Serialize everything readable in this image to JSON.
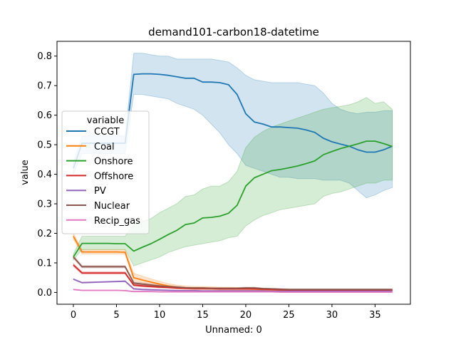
{
  "chart_data": {
    "type": "line",
    "title": "demand101-carbon18-datetime",
    "xlabel": "Unnamed: 0",
    "ylabel": "value",
    "xlim": [
      -1.9,
      39.1
    ],
    "ylim": [
      -0.04,
      0.85
    ],
    "xticks": [
      0,
      5,
      10,
      15,
      20,
      25,
      30,
      35
    ],
    "yticks": [
      0.0,
      0.1,
      0.2,
      0.3,
      0.4,
      0.5,
      0.6,
      0.7,
      0.8
    ],
    "grid": false,
    "legend": {
      "title": "variable",
      "placement": "center-left"
    },
    "x": [
      0,
      1,
      2,
      3,
      4,
      5,
      6,
      7,
      8,
      9,
      10,
      11,
      12,
      13,
      14,
      15,
      16,
      17,
      18,
      19,
      20,
      21,
      22,
      23,
      24,
      25,
      26,
      27,
      28,
      29,
      30,
      31,
      32,
      33,
      34,
      35,
      36,
      37
    ],
    "series": [
      {
        "name": "CCGT",
        "color": "#1f77b4",
        "values": [
          0.42,
          0.505,
          0.505,
          0.505,
          0.505,
          0.505,
          0.505,
          0.738,
          0.74,
          0.74,
          0.738,
          0.735,
          0.73,
          0.725,
          0.725,
          0.712,
          0.712,
          0.71,
          0.703,
          0.67,
          0.605,
          0.577,
          0.57,
          0.56,
          0.56,
          0.558,
          0.556,
          0.55,
          0.542,
          0.522,
          0.51,
          0.502,
          0.495,
          0.483,
          0.475,
          0.475,
          0.483,
          0.495
        ],
        "lower": [
          0.4,
          0.47,
          0.47,
          0.47,
          0.47,
          0.47,
          0.47,
          0.67,
          0.67,
          0.665,
          0.66,
          0.655,
          0.64,
          0.63,
          0.62,
          0.6,
          0.57,
          0.54,
          0.5,
          0.47,
          0.43,
          0.42,
          0.41,
          0.4,
          0.39,
          0.39,
          0.385,
          0.385,
          0.385,
          0.38,
          0.38,
          0.38,
          0.37,
          0.345,
          0.32,
          0.33,
          0.345,
          0.355
        ],
        "upper": [
          0.44,
          0.53,
          0.53,
          0.53,
          0.53,
          0.53,
          0.53,
          0.81,
          0.81,
          0.805,
          0.8,
          0.8,
          0.79,
          0.79,
          0.79,
          0.79,
          0.79,
          0.785,
          0.78,
          0.76,
          0.735,
          0.72,
          0.715,
          0.71,
          0.71,
          0.71,
          0.71,
          0.705,
          0.7,
          0.675,
          0.64,
          0.62,
          0.61,
          0.605,
          0.61,
          0.61,
          0.615,
          0.615
        ]
      },
      {
        "name": "Coal",
        "color": "#ff7f0e",
        "values": [
          0.19,
          0.137,
          0.137,
          0.137,
          0.137,
          0.137,
          0.136,
          0.05,
          0.042,
          0.035,
          0.028,
          0.022,
          0.018,
          0.016,
          0.015,
          0.015,
          0.014,
          0.013,
          0.013,
          0.012,
          0.012,
          0.011,
          0.01,
          0.009,
          0.008,
          0.008,
          0.007,
          0.007,
          0.006,
          0.006,
          0.006,
          0.006,
          0.006,
          0.006,
          0.005,
          0.005,
          0.005,
          0.005
        ],
        "lower": [
          0.18,
          0.13,
          0.13,
          0.13,
          0.13,
          0.13,
          0.13,
          0.04,
          0.033,
          0.026,
          0.02,
          0.015,
          0.012,
          0.011,
          0.01,
          0.01,
          0.009,
          0.008,
          0.008,
          0.007,
          0.007,
          0.007,
          0.006,
          0.005,
          0.005,
          0.005,
          0.004,
          0.004,
          0.004,
          0.004,
          0.004,
          0.004,
          0.004,
          0.004,
          0.003,
          0.003,
          0.003,
          0.003
        ],
        "upper": [
          0.2,
          0.145,
          0.145,
          0.145,
          0.145,
          0.145,
          0.145,
          0.065,
          0.055,
          0.046,
          0.038,
          0.03,
          0.025,
          0.022,
          0.02,
          0.02,
          0.019,
          0.018,
          0.018,
          0.017,
          0.017,
          0.016,
          0.014,
          0.013,
          0.012,
          0.011,
          0.01,
          0.01,
          0.009,
          0.009,
          0.009,
          0.009,
          0.009,
          0.009,
          0.008,
          0.008,
          0.008,
          0.008
        ]
      },
      {
        "name": "Onshore",
        "color": "#2ca02c",
        "values": [
          0.12,
          0.166,
          0.166,
          0.166,
          0.166,
          0.165,
          0.165,
          0.14,
          0.153,
          0.165,
          0.18,
          0.196,
          0.21,
          0.23,
          0.235,
          0.252,
          0.254,
          0.258,
          0.268,
          0.295,
          0.36,
          0.388,
          0.4,
          0.412,
          0.416,
          0.422,
          0.428,
          0.436,
          0.445,
          0.466,
          0.477,
          0.487,
          0.495,
          0.503,
          0.512,
          0.512,
          0.504,
          0.494
        ],
        "lower": [
          0.11,
          0.145,
          0.145,
          0.145,
          0.145,
          0.145,
          0.145,
          0.09,
          0.1,
          0.11,
          0.12,
          0.135,
          0.145,
          0.155,
          0.16,
          0.165,
          0.17,
          0.175,
          0.185,
          0.19,
          0.225,
          0.245,
          0.26,
          0.27,
          0.28,
          0.285,
          0.29,
          0.295,
          0.3,
          0.325,
          0.335,
          0.34,
          0.35,
          0.36,
          0.37,
          0.37,
          0.38,
          0.38
        ],
        "upper": [
          0.13,
          0.19,
          0.19,
          0.19,
          0.19,
          0.19,
          0.19,
          0.23,
          0.24,
          0.25,
          0.27,
          0.285,
          0.3,
          0.325,
          0.33,
          0.35,
          0.36,
          0.36,
          0.375,
          0.41,
          0.49,
          0.525,
          0.545,
          0.56,
          0.57,
          0.58,
          0.59,
          0.6,
          0.61,
          0.62,
          0.625,
          0.63,
          0.635,
          0.645,
          0.66,
          0.64,
          0.645,
          0.62
        ]
      },
      {
        "name": "Offshore",
        "color": "#d62728",
        "values": [
          0.093,
          0.066,
          0.066,
          0.066,
          0.066,
          0.066,
          0.066,
          0.025,
          0.022,
          0.02,
          0.018,
          0.017,
          0.015,
          0.014,
          0.013,
          0.013,
          0.013,
          0.012,
          0.012,
          0.012,
          0.012,
          0.012,
          0.011,
          0.01,
          0.009,
          0.008,
          0.008,
          0.008,
          0.008,
          0.008,
          0.008,
          0.008,
          0.008,
          0.008,
          0.008,
          0.008,
          0.008,
          0.008
        ],
        "lower": [
          0.088,
          0.062,
          0.062,
          0.062,
          0.062,
          0.062,
          0.062,
          0.021,
          0.019,
          0.017,
          0.015,
          0.014,
          0.012,
          0.011,
          0.01,
          0.01,
          0.01,
          0.009,
          0.009,
          0.009,
          0.009,
          0.009,
          0.008,
          0.007,
          0.007,
          0.006,
          0.006,
          0.006,
          0.006,
          0.006,
          0.006,
          0.006,
          0.006,
          0.006,
          0.006,
          0.006,
          0.006,
          0.006
        ],
        "upper": [
          0.098,
          0.07,
          0.07,
          0.07,
          0.07,
          0.07,
          0.07,
          0.029,
          0.025,
          0.023,
          0.021,
          0.02,
          0.018,
          0.017,
          0.016,
          0.016,
          0.016,
          0.015,
          0.015,
          0.015,
          0.015,
          0.015,
          0.014,
          0.013,
          0.012,
          0.01,
          0.01,
          0.01,
          0.01,
          0.01,
          0.01,
          0.01,
          0.01,
          0.01,
          0.01,
          0.01,
          0.01,
          0.01
        ]
      },
      {
        "name": "PV",
        "color": "#9467bd",
        "values": [
          0.045,
          0.033,
          0.034,
          0.035,
          0.036,
          0.037,
          0.038,
          0.012,
          0.01,
          0.009,
          0.008,
          0.007,
          0.006,
          0.006,
          0.006,
          0.005,
          0.005,
          0.005,
          0.005,
          0.005,
          0.005,
          0.005,
          0.005,
          0.004,
          0.004,
          0.004,
          0.004,
          0.004,
          0.004,
          0.004,
          0.004,
          0.004,
          0.004,
          0.004,
          0.004,
          0.004,
          0.004,
          0.004
        ],
        "lower": [
          0.043,
          0.031,
          0.032,
          0.033,
          0.034,
          0.035,
          0.036,
          0.01,
          0.008,
          0.007,
          0.006,
          0.005,
          0.005,
          0.005,
          0.005,
          0.004,
          0.004,
          0.004,
          0.004,
          0.004,
          0.004,
          0.004,
          0.004,
          0.003,
          0.003,
          0.003,
          0.003,
          0.003,
          0.003,
          0.003,
          0.003,
          0.003,
          0.003,
          0.003,
          0.003,
          0.003,
          0.003,
          0.003
        ],
        "upper": [
          0.047,
          0.035,
          0.036,
          0.037,
          0.038,
          0.039,
          0.04,
          0.014,
          0.012,
          0.011,
          0.01,
          0.009,
          0.008,
          0.007,
          0.007,
          0.006,
          0.006,
          0.006,
          0.006,
          0.006,
          0.006,
          0.006,
          0.006,
          0.005,
          0.005,
          0.005,
          0.005,
          0.005,
          0.005,
          0.005,
          0.005,
          0.005,
          0.005,
          0.005,
          0.005,
          0.005,
          0.005,
          0.005
        ]
      },
      {
        "name": "Nuclear",
        "color": "#8c564b",
        "values": [
          0.12,
          0.087,
          0.087,
          0.087,
          0.087,
          0.087,
          0.087,
          0.032,
          0.028,
          0.025,
          0.022,
          0.02,
          0.018,
          0.016,
          0.015,
          0.015,
          0.014,
          0.014,
          0.014,
          0.014,
          0.015,
          0.015,
          0.013,
          0.012,
          0.011,
          0.01,
          0.01,
          0.01,
          0.01,
          0.01,
          0.01,
          0.01,
          0.01,
          0.01,
          0.01,
          0.01,
          0.01,
          0.01
        ],
        "lower": [
          0.115,
          0.083,
          0.083,
          0.083,
          0.083,
          0.083,
          0.083,
          0.028,
          0.024,
          0.021,
          0.019,
          0.017,
          0.015,
          0.014,
          0.013,
          0.013,
          0.012,
          0.012,
          0.012,
          0.012,
          0.012,
          0.012,
          0.011,
          0.01,
          0.009,
          0.008,
          0.008,
          0.008,
          0.008,
          0.008,
          0.008,
          0.008,
          0.008,
          0.008,
          0.008,
          0.008,
          0.008,
          0.008
        ],
        "upper": [
          0.125,
          0.091,
          0.091,
          0.091,
          0.091,
          0.091,
          0.091,
          0.036,
          0.032,
          0.029,
          0.025,
          0.023,
          0.021,
          0.018,
          0.017,
          0.017,
          0.016,
          0.016,
          0.016,
          0.016,
          0.018,
          0.018,
          0.015,
          0.014,
          0.013,
          0.012,
          0.012,
          0.012,
          0.012,
          0.012,
          0.012,
          0.012,
          0.012,
          0.012,
          0.012,
          0.012,
          0.012,
          0.012
        ]
      },
      {
        "name": "Recip_gas",
        "color": "#e377c2",
        "values": [
          0.01,
          0.007,
          0.007,
          0.007,
          0.007,
          0.007,
          0.006,
          0.003,
          0.003,
          0.003,
          0.002,
          0.002,
          0.002,
          0.002,
          0.002,
          0.002,
          0.002,
          0.002,
          0.002,
          0.002,
          0.002,
          0.002,
          0.002,
          0.002,
          0.001,
          0.001,
          0.001,
          0.001,
          0.001,
          0.001,
          0.001,
          0.001,
          0.001,
          0.001,
          0.001,
          0.001,
          0.001,
          0.001
        ],
        "lower": [
          0.009,
          0.006,
          0.006,
          0.006,
          0.006,
          0.006,
          0.005,
          0.002,
          0.002,
          0.002,
          0.001,
          0.001,
          0.001,
          0.001,
          0.001,
          0.001,
          0.001,
          0.001,
          0.001,
          0.001,
          0.001,
          0.001,
          0.001,
          0.001,
          0.0,
          0.0,
          0.0,
          0.0,
          0.0,
          0.0,
          0.0,
          0.0,
          0.0,
          0.0,
          0.0,
          0.0,
          0.0,
          0.0
        ],
        "upper": [
          0.011,
          0.008,
          0.008,
          0.008,
          0.008,
          0.008,
          0.007,
          0.004,
          0.004,
          0.004,
          0.003,
          0.003,
          0.003,
          0.003,
          0.003,
          0.003,
          0.003,
          0.003,
          0.003,
          0.003,
          0.003,
          0.003,
          0.003,
          0.003,
          0.002,
          0.002,
          0.002,
          0.002,
          0.002,
          0.002,
          0.002,
          0.002,
          0.002,
          0.002,
          0.002,
          0.002,
          0.002,
          0.002
        ]
      }
    ]
  }
}
